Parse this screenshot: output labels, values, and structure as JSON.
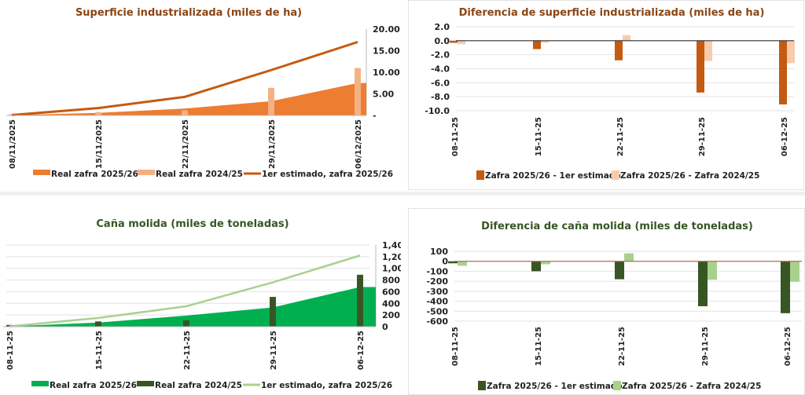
{
  "chart_data": [
    {
      "type": "area+bar+line",
      "title": "Superficie industrializada (miles de ha)",
      "title_color": "#8B4513",
      "categories": [
        "08/11/2025",
        "15/11/2025",
        "22/11/2025",
        "29/11/2025",
        "06/12/2025"
      ],
      "ylim": [
        0,
        20
      ],
      "yticks": [
        "-",
        "5.00",
        "10.00",
        "15.00",
        "20.00"
      ],
      "ytick_values": [
        0,
        5,
        10,
        15,
        20
      ],
      "grid": false,
      "series": [
        {
          "name": "Real zafra 2025/26",
          "kind": "area",
          "color": "#ED7D31",
          "values": [
            0.1,
            0.6,
            1.6,
            3.3,
            7.5
          ]
        },
        {
          "name": "Real zafra 2024/25",
          "kind": "bar",
          "color": "#F4B183",
          "values": [
            0.3,
            0.8,
            1.2,
            6.4,
            11.0
          ]
        },
        {
          "name": "1er estimado, zafra 2025/26",
          "kind": "line",
          "color": "#C55A11",
          "values": [
            0.1,
            1.7,
            4.3,
            10.5,
            17.0
          ]
        }
      ],
      "legend": "bottom"
    },
    {
      "type": "bar",
      "title": "Diferencia de superficie industrializada (miles de ha)",
      "title_color": "#8B4513",
      "categories": [
        "08-11-25",
        "15-11-25",
        "22-11-25",
        "29-11-25",
        "06-12-25"
      ],
      "ylim": [
        -10,
        2
      ],
      "yticks": [
        "2.0",
        "0.0",
        "-2.0",
        "-4.0",
        "-6.0",
        "-8.0",
        "-10.0"
      ],
      "ytick_values": [
        2,
        0,
        -2,
        -4,
        -6,
        -8,
        -10
      ],
      "grid": true,
      "series": [
        {
          "name": "Zafra 2025/26 - 1er estimado",
          "color": "#C55A11",
          "values": [
            -0.3,
            -1.2,
            -2.8,
            -7.4,
            -9.1
          ]
        },
        {
          "name": "Zafra 2025/26 - Zafra 2024/25",
          "color": "#F8CBAD",
          "values": [
            -0.5,
            -0.3,
            0.8,
            -2.9,
            -3.2
          ]
        }
      ],
      "legend": "bottom"
    },
    {
      "type": "area+bar+line",
      "title": "Caña molida (miles de toneladas)",
      "title_color": "#375623",
      "categories": [
        "08-11-25",
        "15-11-25",
        "22-11-25",
        "29-11-25",
        "06-12-25"
      ],
      "ylim": [
        0,
        1400
      ],
      "yticks": [
        "0",
        "200",
        "400",
        "600",
        "800",
        "1,000",
        "1,200",
        "1,400"
      ],
      "ytick_values": [
        0,
        200,
        400,
        600,
        800,
        1000,
        1200,
        1400
      ],
      "grid": true,
      "series": [
        {
          "name": "Real zafra 2025/26",
          "kind": "area",
          "color": "#00B050",
          "values": [
            5,
            70,
            190,
            330,
            680
          ]
        },
        {
          "name": "Real zafra 2024/25",
          "kind": "bar",
          "color": "#375623",
          "values": [
            30,
            90,
            110,
            510,
            890
          ]
        },
        {
          "name": "1er estimado, zafra 2025/26",
          "kind": "line",
          "color": "#A9D18E",
          "values": [
            5,
            150,
            350,
            760,
            1220
          ]
        }
      ],
      "legend": "bottom"
    },
    {
      "type": "bar",
      "title": "Diferencia de caña molida (miles de toneladas)",
      "title_color": "#375623",
      "categories": [
        "08-11-25",
        "15-11-25",
        "22-11-25",
        "29-11-25",
        "06-12-25"
      ],
      "ylim": [
        -600,
        100
      ],
      "yticks": [
        "100",
        "0",
        "-100",
        "-200",
        "-300",
        "-400",
        "-500",
        "-600"
      ],
      "ytick_values": [
        100,
        0,
        -100,
        -200,
        -300,
        -400,
        -500,
        -600
      ],
      "grid": true,
      "series": [
        {
          "name": "Zafra 2025/26 - 1er estimado",
          "color": "#375623",
          "values": [
            -20,
            -100,
            -180,
            -450,
            -520
          ]
        },
        {
          "name": "Zafra 2025/26 - Zafra 2024/25",
          "color": "#A9D18E",
          "values": [
            -45,
            -30,
            80,
            -185,
            -205
          ]
        }
      ],
      "legend": "bottom"
    }
  ]
}
